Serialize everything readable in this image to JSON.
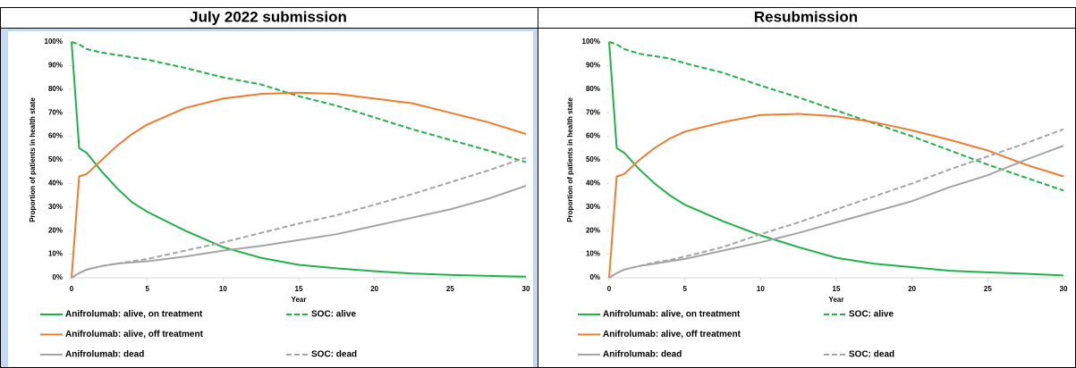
{
  "chart_data": [
    {
      "type": "line",
      "title": "July 2022 submission",
      "x_label": "Year",
      "y_label": "Proportion of patients in health state",
      "legend": "bottom",
      "x": [
        0,
        0.5,
        1,
        2,
        3,
        4,
        5,
        7.5,
        10,
        12.5,
        15,
        17.5,
        20,
        22.5,
        25,
        27.5,
        30
      ],
      "xlim": [
        0,
        30
      ],
      "xticks": [
        0,
        5,
        10,
        15,
        20,
        25,
        30
      ],
      "ylim": [
        0,
        100
      ],
      "yticks": [
        {
          "value": 0,
          "label": "0%"
        },
        {
          "value": 10,
          "label": "10%"
        },
        {
          "value": 20,
          "label": "20%"
        },
        {
          "value": 30,
          "label": "30%"
        },
        {
          "value": 40,
          "label": "40%"
        },
        {
          "value": 50,
          "label": "50%"
        },
        {
          "value": 60,
          "label": "60%"
        },
        {
          "value": 70,
          "label": "70%"
        },
        {
          "value": 80,
          "label": "80%"
        },
        {
          "value": 90,
          "label": "90%"
        },
        {
          "value": 100,
          "label": "100%"
        }
      ],
      "series": [
        {
          "name": "Anifrolumab: alive, on treatment",
          "color": "#22b14c",
          "dashed": false,
          "values": [
            100,
            55,
            53,
            45,
            38,
            32,
            28,
            20,
            13,
            8.5,
            5.5,
            4,
            2.8,
            1.8,
            1.2,
            0.8,
            0.5
          ]
        },
        {
          "name": "SOC: alive",
          "color": "#22b14c",
          "dashed": true,
          "values": [
            100,
            99,
            97,
            95.5,
            94.5,
            93.5,
            92.5,
            89,
            85,
            82,
            77,
            73,
            68,
            63,
            58.5,
            54,
            49
          ]
        },
        {
          "name": "Anifrolumab: alive, off treatment",
          "color": "#ed7d31",
          "dashed": false,
          "values": [
            0,
            43,
            44,
            50,
            56,
            61,
            65,
            72,
            76,
            78,
            78.5,
            78,
            76,
            74,
            70,
            66,
            61
          ]
        },
        {
          "name": "Anifrolumab: dead",
          "color": "#a5a5a5",
          "dashed": false,
          "values": [
            0,
            2,
            3.5,
            5,
            6,
            6.5,
            7,
            9,
            11.5,
            13.5,
            16,
            18.5,
            22,
            25.5,
            29,
            33.5,
            39
          ]
        },
        {
          "name": "SOC: dead",
          "color": "#a5a5a5",
          "dashed": true,
          "values": [
            0,
            2,
            3.5,
            5,
            6,
            7,
            8,
            11.5,
            15,
            19,
            23,
            26.5,
            31,
            35.5,
            40.5,
            45.5,
            51
          ]
        }
      ]
    },
    {
      "type": "line",
      "title": "Resubmission",
      "x_label": "Year",
      "y_label": "Proportion of patients in health state",
      "legend": "bottom",
      "x": [
        0,
        0.5,
        1,
        2,
        3,
        4,
        5,
        7.5,
        10,
        12.5,
        15,
        17.5,
        20,
        22.5,
        25,
        27.5,
        30
      ],
      "xlim": [
        0,
        30
      ],
      "xticks": [
        0,
        5,
        10,
        15,
        20,
        25,
        30
      ],
      "ylim": [
        0,
        100
      ],
      "yticks": [
        {
          "value": 0,
          "label": "0%"
        },
        {
          "value": 10,
          "label": "10%"
        },
        {
          "value": 20,
          "label": "20%"
        },
        {
          "value": 30,
          "label": "30%"
        },
        {
          "value": 40,
          "label": "40%"
        },
        {
          "value": 50,
          "label": "50%"
        },
        {
          "value": 60,
          "label": "60%"
        },
        {
          "value": 70,
          "label": "70%"
        },
        {
          "value": 80,
          "label": "80%"
        },
        {
          "value": 90,
          "label": "90%"
        },
        {
          "value": 100,
          "label": "100%"
        }
      ],
      "series": [
        {
          "name": "Anifrolumab: alive, on treatment",
          "color": "#22b14c",
          "dashed": false,
          "values": [
            100,
            55,
            53,
            46,
            40,
            35,
            31,
            24,
            18,
            13,
            8.5,
            6,
            4.5,
            3,
            2.3,
            1.7,
            1
          ]
        },
        {
          "name": "SOC: alive",
          "color": "#22b14c",
          "dashed": true,
          "values": [
            100,
            99,
            97,
            95,
            94,
            93,
            91,
            87,
            81.5,
            76.5,
            71,
            65.5,
            60,
            54,
            48,
            42.5,
            37
          ]
        },
        {
          "name": "Anifrolumab: alive, off treatment",
          "color": "#ed7d31",
          "dashed": false,
          "values": [
            0,
            43,
            44,
            50,
            55,
            59,
            62,
            66,
            69,
            69.5,
            68.5,
            66,
            62.5,
            58.5,
            54,
            48,
            43
          ]
        },
        {
          "name": "Anifrolumab: dead",
          "color": "#a5a5a5",
          "dashed": false,
          "values": [
            0,
            2,
            3.5,
            5,
            6,
            7,
            8,
            11.5,
            15,
            19,
            23.5,
            28,
            32.5,
            38.5,
            43.5,
            50,
            56
          ]
        },
        {
          "name": "SOC: dead",
          "color": "#a5a5a5",
          "dashed": true,
          "values": [
            0,
            2,
            3.5,
            5,
            6.5,
            7.5,
            9,
            13,
            18.5,
            23.5,
            29,
            34.5,
            40,
            46,
            51.5,
            57,
            63
          ]
        }
      ]
    }
  ]
}
